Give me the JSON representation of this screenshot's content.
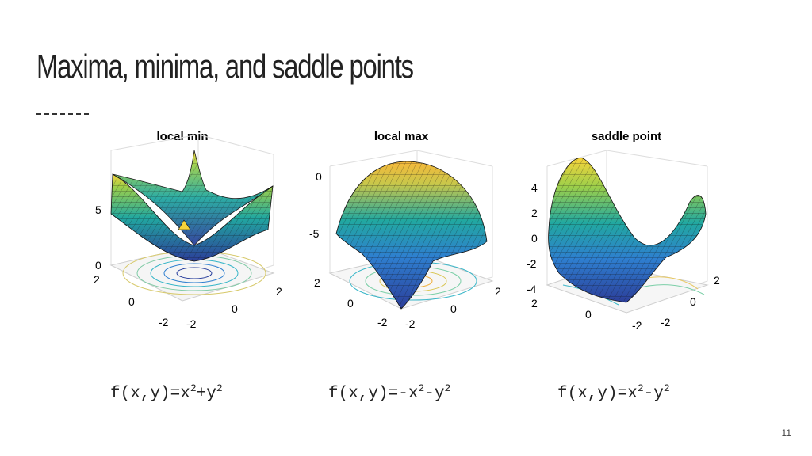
{
  "slide": {
    "title": "Maxima, minima, and saddle points",
    "page_number": "11"
  },
  "plots": [
    {
      "id": "min",
      "title": "local min",
      "z_ticks": [
        "5",
        "0"
      ],
      "y_ticks": [
        "2",
        "0",
        "-2"
      ],
      "x_ticks": [
        "-2",
        "0",
        "2"
      ],
      "formula": {
        "prefix": "f(x,y)=x",
        "a": "2",
        "mid": "+y",
        "b": "2"
      }
    },
    {
      "id": "max",
      "title": "local max",
      "z_ticks": [
        "0",
        "-5"
      ],
      "y_ticks": [
        "2",
        "0",
        "-2"
      ],
      "x_ticks": [
        "-2",
        "0",
        "2"
      ],
      "formula": {
        "prefix": "f(x,y)=-x",
        "a": "2",
        "mid": "-y",
        "b": "2"
      }
    },
    {
      "id": "saddle",
      "title": "saddle point",
      "z_ticks": [
        "4",
        "2",
        "0",
        "-2",
        "-4"
      ],
      "y_ticks": [
        "2",
        "0",
        "-2"
      ],
      "x_ticks": [
        "-2",
        "0",
        "2"
      ],
      "formula": {
        "prefix": "f(x,y)=x",
        "a": "2",
        "mid": "-y",
        "b": "2"
      }
    }
  ],
  "colors": {
    "surface_low": "#2c3e9a",
    "surface_mid": "#21a8a0",
    "surface_high": "#f7d33a",
    "mesh": "#111111"
  }
}
